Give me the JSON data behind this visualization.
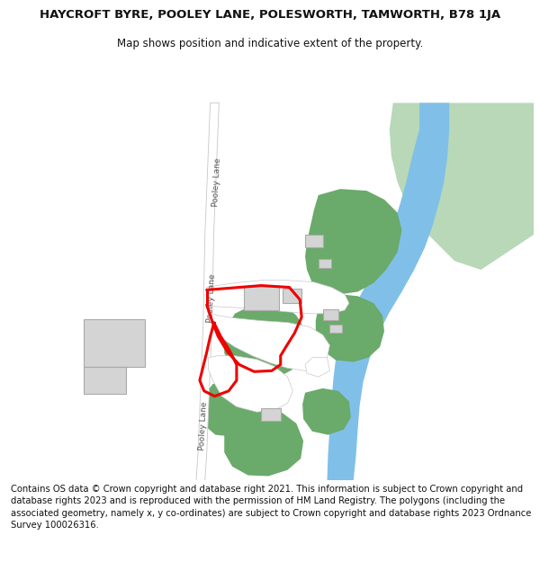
{
  "title": "HAYCROFT BYRE, POOLEY LANE, POLESWORTH, TAMWORTH, B78 1JA",
  "subtitle": "Map shows position and indicative extent of the property.",
  "footer": "Contains OS data © Crown copyright and database right 2021. This information is subject to Crown copyright and database rights 2023 and is reproduced with the permission of HM Land Registry. The polygons (including the associated geometry, namely x, y co-ordinates) are subject to Crown copyright and database rights 2023 Ordnance Survey 100026316.",
  "bg_color": "#ffffff",
  "map_bg": "#f2f2f2",
  "road_color": "#ffffff",
  "road_border_color": "#c8c8c8",
  "green_color": "#6aaa6a",
  "light_green_color": "#b8d8b8",
  "blue_color": "#80c0e8",
  "building_color": "#d4d4d4",
  "building_border": "#aaaaaa",
  "red_outline_color": "#ee0000",
  "text_color": "#444444",
  "title_fontsize": 9.5,
  "subtitle_fontsize": 8.5,
  "footer_fontsize": 7.2
}
